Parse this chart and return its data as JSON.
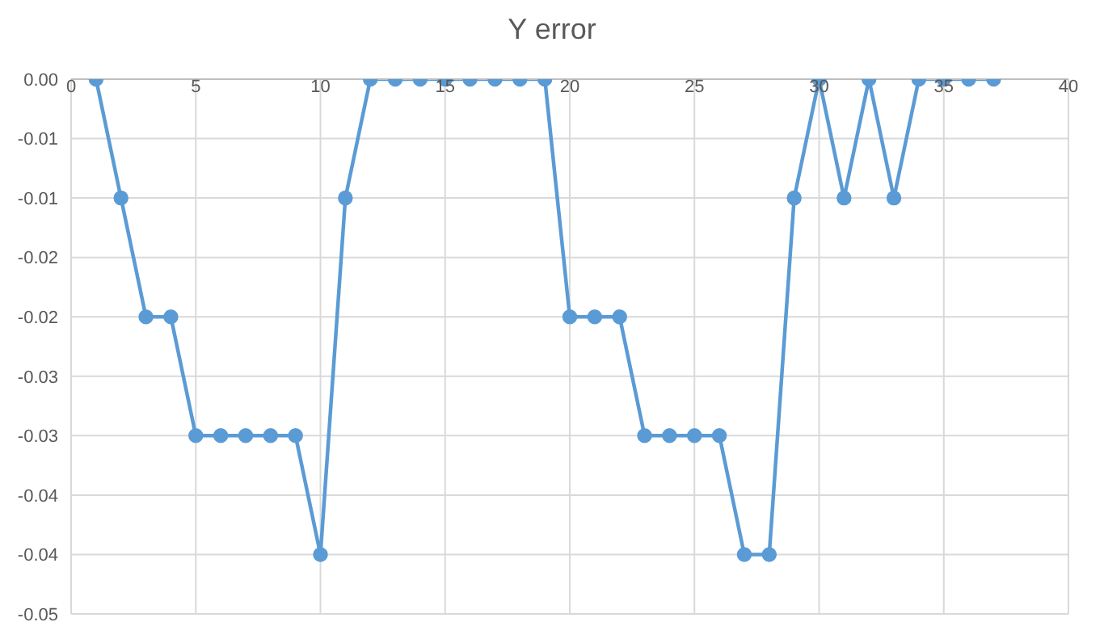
{
  "chart_data": {
    "type": "line",
    "title": "Y error",
    "x": [
      1,
      2,
      3,
      4,
      5,
      6,
      7,
      8,
      9,
      10,
      11,
      12,
      13,
      14,
      15,
      16,
      17,
      18,
      19,
      20,
      21,
      22,
      23,
      24,
      25,
      26,
      27,
      28,
      29,
      30,
      31,
      32,
      33,
      34,
      35,
      36,
      37
    ],
    "series": [
      {
        "color": "#5b9bd5",
        "values": [
          0,
          -0.01,
          -0.02,
          -0.02,
          -0.03,
          -0.03,
          -0.03,
          -0.03,
          -0.03,
          -0.04,
          -0.01,
          0,
          0,
          0,
          0,
          0,
          0,
          0,
          0,
          -0.02,
          -0.02,
          -0.02,
          -0.03,
          -0.03,
          -0.03,
          -0.03,
          -0.04,
          -0.04,
          -0.01,
          0,
          -0.01,
          0,
          -0.01,
          0,
          0,
          0,
          0
        ]
      }
    ],
    "xlim": [
      0,
      40
    ],
    "xticks": [
      0,
      5,
      10,
      15,
      20,
      25,
      30,
      35,
      40
    ],
    "ylim": [
      -0.045,
      0
    ],
    "yticks": [
      {
        "value": 0,
        "label": "0.00"
      },
      {
        "value": -0.005,
        "label": "-0.01"
      },
      {
        "value": -0.01,
        "label": "-0.01"
      },
      {
        "value": -0.015,
        "label": "-0.02"
      },
      {
        "value": -0.02,
        "label": "-0.02"
      },
      {
        "value": -0.025,
        "label": "-0.03"
      },
      {
        "value": -0.03,
        "label": "-0.03"
      },
      {
        "value": -0.035,
        "label": "-0.04"
      },
      {
        "value": -0.04,
        "label": "-0.04"
      },
      {
        "value": -0.045,
        "label": "-0.05"
      }
    ],
    "grid": true,
    "marker": "circle",
    "line_style": "solid",
    "legend": false
  }
}
